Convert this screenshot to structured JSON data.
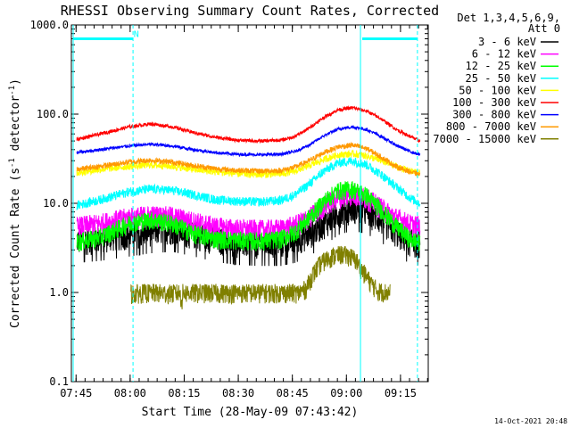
{
  "chart_data": {
    "type": "line",
    "title": "RHESSI Observing Summary Count Rates, Corrected",
    "xlabel": "Start Time (28-May-09 07:43:42)",
    "ylabel_main": "Corrected Count Rate (s",
    "ylabel_sup1": "-1",
    "ylabel_mid": " detector",
    "ylabel_sup2": "-1",
    "ylabel_end": ")",
    "y_scale": "log",
    "ylim": [
      0.1,
      1000.0
    ],
    "y_ticks": [
      {
        "value": 0.1,
        "label": "0.1"
      },
      {
        "value": 1.0,
        "label": "1.0"
      },
      {
        "value": 10.0,
        "label": "10.0"
      },
      {
        "value": 100.0,
        "label": "100.0"
      },
      {
        "value": 1000.0,
        "label": "1000.0"
      }
    ],
    "x_unit": "minutes after 07:43:42",
    "xlim": [
      0.0,
      99.0
    ],
    "x_ticks": [
      {
        "value": 1.3,
        "label": "07:45"
      },
      {
        "value": 16.3,
        "label": "08:00"
      },
      {
        "value": 31.3,
        "label": "08:15"
      },
      {
        "value": 46.3,
        "label": "08:30"
      },
      {
        "value": 61.3,
        "label": "08:45"
      },
      {
        "value": 76.3,
        "label": "09:00"
      },
      {
        "value": 91.3,
        "label": "09:15"
      }
    ],
    "legend": {
      "header_line1": "Det 1,3,4,5,6,9,",
      "header_line2": "Att 0",
      "placement": "right, outside plot"
    },
    "series": [
      {
        "name": "3 - 6 keV",
        "color": "#000000",
        "x": [
          1.5,
          8,
          16,
          22,
          28,
          34,
          40,
          46,
          52,
          58,
          62,
          66,
          70,
          74,
          78,
          82,
          86,
          90,
          94,
          96.7
        ],
        "y": [
          3.9,
          4.1,
          4.6,
          5.0,
          5.2,
          4.6,
          4.0,
          3.7,
          3.6,
          3.6,
          3.9,
          4.6,
          6.0,
          8.0,
          9.0,
          8.2,
          6.6,
          4.8,
          3.8,
          3.6
        ]
      },
      {
        "name": "6 - 12 keV",
        "color": "#ff00ff",
        "x": [
          1.5,
          8,
          16,
          22,
          28,
          34,
          40,
          46,
          52,
          58,
          62,
          66,
          70,
          74,
          78,
          82,
          86,
          90,
          94,
          96.7
        ],
        "y": [
          5.5,
          6.0,
          7.0,
          7.4,
          7.2,
          6.3,
          5.5,
          5.2,
          5.1,
          5.2,
          5.7,
          7.0,
          9.4,
          11.8,
          12.8,
          11.5,
          9.0,
          7.0,
          5.9,
          5.6
        ]
      },
      {
        "name": "12 - 25 keV",
        "color": "#00ff00",
        "x": [
          1.5,
          8,
          16,
          22,
          28,
          34,
          40,
          46,
          52,
          58,
          62,
          66,
          70,
          74,
          78,
          82,
          86,
          90,
          94,
          96.7
        ],
        "y": [
          3.7,
          4.2,
          6.0,
          6.6,
          6.0,
          4.6,
          4.0,
          3.9,
          3.8,
          4.0,
          4.8,
          7.0,
          10.5,
          14.0,
          14.6,
          12.2,
          8.5,
          5.6,
          4.0,
          3.6
        ]
      },
      {
        "name": "25 - 50 keV",
        "color": "#00ffff",
        "x": [
          1.5,
          8,
          16,
          22,
          28,
          34,
          40,
          46,
          52,
          58,
          62,
          66,
          70,
          74,
          78,
          82,
          86,
          90,
          94,
          96.7
        ],
        "y": [
          9.5,
          11.0,
          13.5,
          14.5,
          14.0,
          12.5,
          11.0,
          10.6,
          10.4,
          10.8,
          12.5,
          16.5,
          23.0,
          28.5,
          30.0,
          27.0,
          21.0,
          15.5,
          11.5,
          10.0
        ]
      },
      {
        "name": "50 - 100 keV",
        "color": "#ffff00",
        "x": [
          1.5,
          8,
          16,
          22,
          28,
          34,
          40,
          46,
          52,
          58,
          62,
          66,
          70,
          74,
          78,
          82,
          86,
          90,
          94,
          96.7
        ],
        "y": [
          22.0,
          24.0,
          26.0,
          27.0,
          26.0,
          24.0,
          22.5,
          21.5,
          21.0,
          21.3,
          23.0,
          26.5,
          31.0,
          35.0,
          36.0,
          34.0,
          30.0,
          26.0,
          23.0,
          22.0
        ]
      },
      {
        "name": "100 - 300 keV",
        "color": "#ff0000",
        "x": [
          1.5,
          8,
          16,
          22,
          28,
          34,
          40,
          46,
          52,
          58,
          62,
          66,
          70,
          74,
          78,
          82,
          86,
          90,
          94,
          96.7
        ],
        "y": [
          52,
          60,
          72,
          78,
          72,
          62,
          55,
          51,
          50,
          51,
          56,
          70,
          92,
          112,
          118,
          108,
          88,
          68,
          56,
          50
        ]
      },
      {
        "name": "300 - 800 keV",
        "color": "#0000ff",
        "x": [
          1.5,
          8,
          16,
          22,
          28,
          34,
          40,
          46,
          52,
          58,
          62,
          66,
          70,
          74,
          78,
          82,
          86,
          90,
          94,
          96.7
        ],
        "y": [
          37,
          40,
          44,
          46,
          44,
          40,
          37,
          35.5,
          35,
          35.5,
          38,
          45,
          57,
          68,
          72,
          67,
          56,
          45,
          38,
          35
        ]
      },
      {
        "name": "800 - 7000 keV",
        "color": "#ff9900",
        "x": [
          1.5,
          8,
          16,
          22,
          28,
          34,
          40,
          46,
          52,
          58,
          62,
          66,
          70,
          74,
          78,
          82,
          86,
          90,
          94,
          96.7
        ],
        "y": [
          24.0,
          26.0,
          29.0,
          30.5,
          29.0,
          26.5,
          24.5,
          23.5,
          23.0,
          23.3,
          25.5,
          30.0,
          37.0,
          43.0,
          45.0,
          41.0,
          33.0,
          26.0,
          22.5,
          21.0
        ]
      },
      {
        "name": "7000 - 15000 keV",
        "color": "#808000",
        "x": [
          16.5,
          20,
          24,
          27,
          30,
          30.8,
          30.9,
          33,
          36,
          62,
          63,
          65,
          67,
          69,
          71,
          73,
          75,
          77,
          79,
          81,
          83,
          85,
          88.5
        ],
        "y": [
          0.98,
          1.0,
          1.0,
          0.98,
          1.0,
          0.78,
          1.0,
          1.0,
          1.0,
          1.0,
          1.0,
          1.1,
          1.6,
          2.1,
          2.4,
          2.6,
          2.7,
          2.6,
          2.3,
          1.7,
          1.3,
          1.05,
          1.0
        ]
      }
    ],
    "attenuator_bar": {
      "color": "#00ffff",
      "segments": [
        [
          0.0,
          17.1
        ],
        [
          80.2,
          96.0
        ]
      ],
      "y_value": 700
    },
    "vertical_markers": [
      {
        "x": 17.1,
        "color": "#00ffff",
        "style": "dashed"
      },
      {
        "x": 80.2,
        "color": "#00ffff",
        "style": "solid"
      },
      {
        "x": 96.0,
        "color": "#00ffff",
        "style": "dashed"
      }
    ],
    "annotations": [
      {
        "text": "N",
        "color": "#00ffff",
        "x": 18.0,
        "y": 800
      }
    ],
    "footer_timestamp": "14-Oct-2021 20:48"
  }
}
